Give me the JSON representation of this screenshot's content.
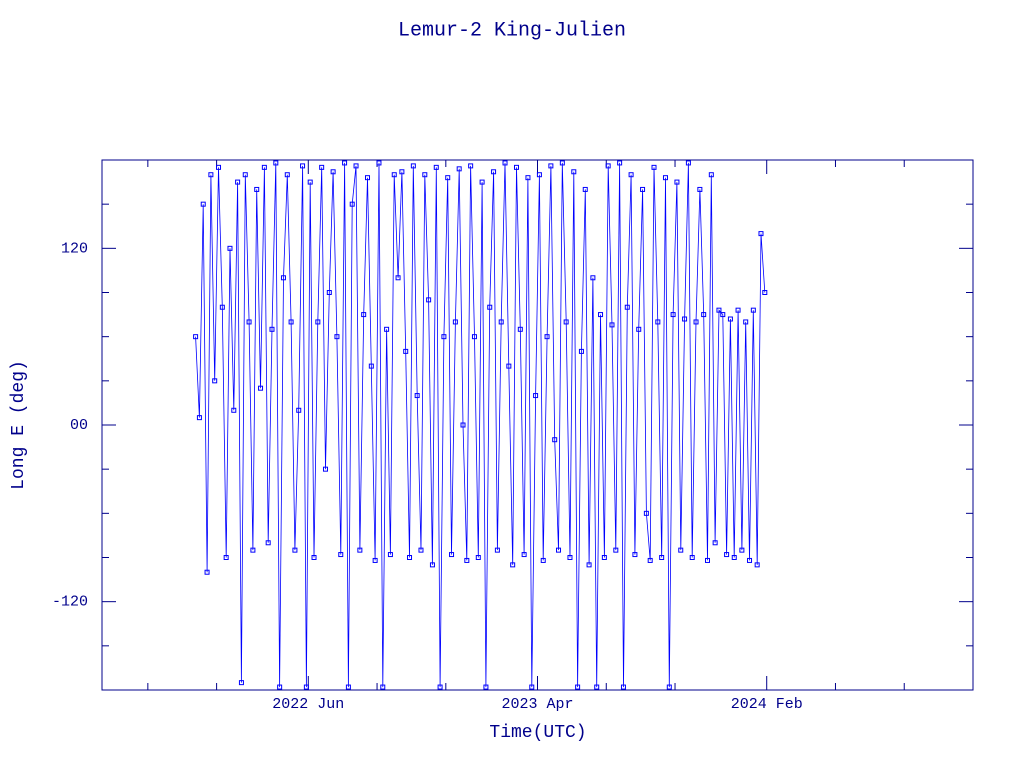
{
  "chart_data": {
    "type": "line",
    "title": "Lemur-2 King-Julien",
    "x_label": "Time(UTC)",
    "y_label": "Long E (deg)",
    "color": "#0000ff",
    "xlim": [
      "2021-09",
      "2024-11"
    ],
    "xticks": [
      {
        "value": "2022-06",
        "label": "2022 Jun"
      },
      {
        "value": "2023-04",
        "label": "2023 Apr"
      },
      {
        "value": "2024-02",
        "label": "2024 Feb"
      }
    ],
    "xminorticks": [
      "2021-11",
      "2022-02",
      "2022-09",
      "2022-12",
      "2023-07",
      "2023-10",
      "2024-05",
      "2024-08"
    ],
    "ylim": [
      -180,
      180
    ],
    "yticks": [
      -120,
      {
        "value": 0,
        "label": "00"
      },
      120
    ],
    "yminorticks": [
      -150,
      -90,
      -60,
      -30,
      30,
      60,
      90,
      150
    ],
    "x": [
      "2022-01",
      "2022-01",
      "2022-01",
      "2022-01",
      "2022-01",
      "2022-01",
      "2022-02",
      "2022-02",
      "2022-02",
      "2022-02",
      "2022-02",
      "2022-02",
      "2022-03",
      "2022-03",
      "2022-03",
      "2022-03",
      "2022-03",
      "2022-03",
      "2022-04",
      "2022-04",
      "2022-04",
      "2022-04",
      "2022-04",
      "2022-04",
      "2022-05",
      "2022-05",
      "2022-05",
      "2022-05",
      "2022-05",
      "2022-05",
      "2022-06",
      "2022-06",
      "2022-06",
      "2022-06",
      "2022-06",
      "2022-06",
      "2022-07",
      "2022-07",
      "2022-07",
      "2022-07",
      "2022-07",
      "2022-07",
      "2022-08",
      "2022-08",
      "2022-08",
      "2022-08",
      "2022-08",
      "2022-08",
      "2022-09",
      "2022-09",
      "2022-09",
      "2022-09",
      "2022-09",
      "2022-09",
      "2022-10",
      "2022-10",
      "2022-10",
      "2022-10",
      "2022-10",
      "2022-10",
      "2022-11",
      "2022-11",
      "2022-11",
      "2022-11",
      "2022-11",
      "2022-11",
      "2022-12",
      "2022-12",
      "2022-12",
      "2022-12",
      "2022-12",
      "2022-12",
      "2023-01",
      "2023-01",
      "2023-01",
      "2023-01",
      "2023-01",
      "2023-01",
      "2023-02",
      "2023-02",
      "2023-02",
      "2023-02",
      "2023-02",
      "2023-02",
      "2023-03",
      "2023-03",
      "2023-03",
      "2023-03",
      "2023-03",
      "2023-03",
      "2023-04",
      "2023-04",
      "2023-04",
      "2023-04",
      "2023-04",
      "2023-04",
      "2023-05",
      "2023-05",
      "2023-05",
      "2023-05",
      "2023-05",
      "2023-05",
      "2023-06",
      "2023-06",
      "2023-06",
      "2023-06",
      "2023-06",
      "2023-06",
      "2023-07",
      "2023-07",
      "2023-07",
      "2023-07",
      "2023-07",
      "2023-07",
      "2023-08",
      "2023-08",
      "2023-08",
      "2023-08",
      "2023-08",
      "2023-08",
      "2023-09",
      "2023-09",
      "2023-09",
      "2023-09",
      "2023-09",
      "2023-09",
      "2023-10",
      "2023-10",
      "2023-10",
      "2023-10",
      "2023-10",
      "2023-10",
      "2023-11",
      "2023-11",
      "2023-11",
      "2023-11",
      "2023-11",
      "2023-11",
      "2023-12",
      "2023-12",
      "2023-12",
      "2023-12",
      "2023-12",
      "2023-12",
      "2024-01",
      "2024-01",
      "2024-01",
      "2024-01",
      "2024-01",
      "2024-01"
    ],
    "values": [
      60,
      5,
      150,
      -100,
      170,
      30,
      175,
      80,
      -90,
      120,
      10,
      165,
      -175,
      170,
      70,
      -85,
      160,
      25,
      175,
      -80,
      65,
      178,
      -178,
      100,
      170,
      70,
      -85,
      10,
      176,
      -178,
      165,
      -90,
      70,
      175,
      -30,
      90,
      172,
      60,
      -88,
      178,
      -178,
      150,
      176,
      -85,
      75,
      168,
      40,
      -92,
      178,
      -178,
      65,
      -88,
      170,
      100,
      172,
      50,
      -90,
      176,
      20,
      -85,
      170,
      85,
      -95,
      175,
      -178,
      60,
      168,
      -88,
      70,
      174,
      0,
      -92,
      176,
      60,
      -90,
      165,
      -178,
      80,
      172,
      -85,
      70,
      178,
      40,
      -95,
      175,
      65,
      -88,
      168,
      -178,
      20,
      170,
      -92,
      60,
      176,
      -10,
      -85,
      178,
      70,
      -90,
      172,
      -178,
      50,
      160,
      -95,
      100,
      -178,
      75,
      -90,
      176,
      68,
      -85,
      178,
      -178,
      80,
      170,
      -88,
      65,
      160,
      -60,
      -92,
      175,
      70,
      -90,
      168,
      -178,
      75,
      165,
      -85,
      72,
      178,
      -90,
      70,
      160,
      75,
      -92,
      170,
      -80,
      78,
      75,
      -88,
      72,
      -90,
      78,
      -85,
      70,
      -92,
      78,
      -95,
      130,
      90
    ]
  }
}
